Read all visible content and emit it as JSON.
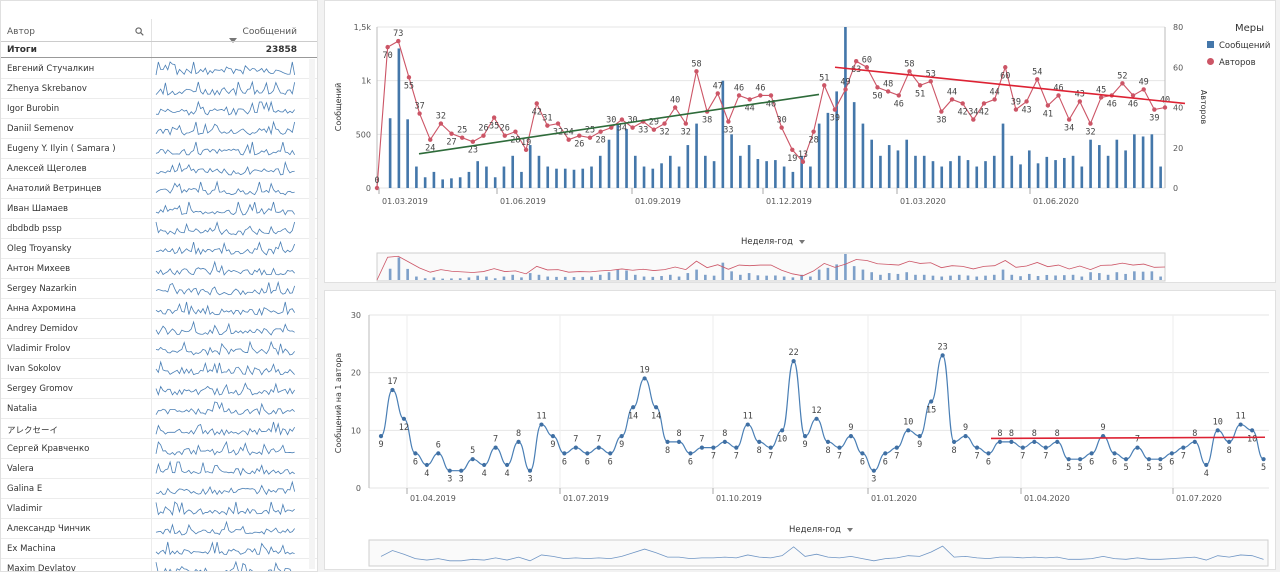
{
  "table": {
    "col_author": "Автор",
    "col_messages": "Сообщений",
    "totals_label": "Итоги",
    "totals_value": "23858",
    "rows": [
      "Евгений Стучалкин",
      "Zhenya Skrebanov",
      "Igor Burobin",
      "Daniil Semenov",
      "Eugeny Y. Ilyin ( Samara )",
      "Алексей Щеголев",
      "Анатолий Ветринцев",
      "Иван Шамаев",
      "dbdbdb pssp",
      "Oleg Troyansky",
      "Антон Михеев",
      "Sergey Nazarkin",
      "Анна Ахромина",
      "Andrey Demidov",
      "Vladimir Frolov",
      "Ivan Sokolov",
      "Sergey Gromov",
      "Natalia",
      "アレクセーイ",
      "Сергей Кравченко",
      "Valera",
      "Galina E",
      "Vladimir",
      "Александр Чинчик",
      "Ex Machina",
      "Maxim Devlatov"
    ]
  },
  "top_chart": {
    "left_axis_title": "Сообщений",
    "right_axis_title": "Авторов",
    "left_ticks": [
      "0",
      "500",
      "1k",
      "1,5k"
    ],
    "right_ticks": [
      "0",
      "20",
      "40",
      "60",
      "80"
    ],
    "x_ticks": [
      "01.03.2019",
      "01.06.2019",
      "01.09.2019",
      "01.12.2019",
      "01.03.2020",
      "01.06.2020"
    ],
    "dimension_label": "Неделя-год",
    "legend_title": "Меры",
    "legend_bar": "Сообщений",
    "legend_line": "Авторов",
    "colors": {
      "bar": "#4477aa",
      "line": "#cc5566",
      "trend1": "#2e6b3a",
      "trend2": "#dd2233"
    }
  },
  "bottom_chart": {
    "y_axis_title": "Сообщений на 1 автора",
    "y_ticks": [
      "0",
      "10",
      "20",
      "30"
    ],
    "x_ticks": [
      "01.04.2019",
      "01.07.2019",
      "01.10.2019",
      "01.01.2020",
      "01.04.2020",
      "01.07.2020"
    ],
    "dimension_label": "Неделя-год",
    "colors": {
      "line": "#4a7fb5",
      "trend": "#dd2233"
    }
  },
  "chart_data": [
    {
      "type": "bar",
      "series": [
        {
          "name": "Сообщений",
          "values": [
            0,
            650,
            1300,
            640,
            200,
            100,
            150,
            80,
            90,
            100,
            150,
            250,
            200,
            100,
            200,
            300,
            150,
            400,
            300,
            200,
            180,
            180,
            170,
            180,
            200,
            300,
            450,
            600,
            550,
            300,
            200,
            180,
            230,
            300,
            200,
            400,
            600,
            300,
            250,
            1000,
            500,
            300,
            400,
            270,
            250,
            260,
            200,
            150,
            300,
            200,
            600,
            700,
            900,
            1500,
            800,
            600,
            450,
            300,
            400,
            350,
            450,
            300,
            300,
            250,
            200,
            250,
            300,
            260,
            200,
            250,
            300,
            600,
            300,
            220,
            350,
            230,
            290,
            260,
            280,
            300,
            200,
            450,
            400,
            300,
            450,
            350,
            500,
            480,
            500,
            200
          ]
        },
        {
          "name": "Авторов",
          "values": [
            0,
            70,
            73,
            55,
            37,
            24,
            32,
            27,
            25,
            23,
            26,
            35,
            26,
            28,
            19,
            42,
            31,
            32,
            24,
            26,
            25,
            28,
            30,
            34,
            30,
            33,
            29,
            32,
            40,
            32,
            58,
            38,
            47,
            33,
            46,
            44,
            46,
            46,
            30,
            19,
            13,
            28,
            51,
            39,
            49,
            63,
            60,
            50,
            48,
            46,
            58,
            51,
            53,
            38,
            44,
            42,
            34,
            42,
            44,
            60,
            39,
            43,
            54,
            41,
            46,
            34,
            43,
            32,
            45,
            46,
            52,
            46,
            49,
            39,
            40
          ]
        }
      ],
      "x_range": [
        "01.03.2019",
        "01.08.2020"
      ],
      "ylim_left": [
        0,
        1500
      ],
      "ylim_right": [
        0,
        80
      ]
    },
    {
      "type": "line",
      "series": [
        {
          "name": "Сообщений на 1 автора",
          "values": [
            9,
            17,
            12,
            6,
            4,
            6,
            3,
            3,
            5,
            4,
            7,
            4,
            8,
            3,
            11,
            9,
            6,
            7,
            6,
            7,
            6,
            9,
            14,
            19,
            14,
            8,
            8,
            6,
            7,
            7,
            8,
            7,
            11,
            8,
            7,
            10,
            22,
            9,
            12,
            8,
            7,
            9,
            6,
            3,
            6,
            7,
            10,
            9,
            15,
            23,
            8,
            9,
            7,
            6,
            8,
            8,
            7,
            8,
            7,
            8,
            5,
            5,
            6,
            9,
            6,
            5,
            7,
            5,
            5,
            6,
            7,
            8,
            4,
            10,
            8,
            11,
            10,
            5
          ]
        }
      ],
      "x_range": [
        "01.03.2019",
        "01.08.2020"
      ],
      "ylim": [
        0,
        30
      ]
    }
  ]
}
